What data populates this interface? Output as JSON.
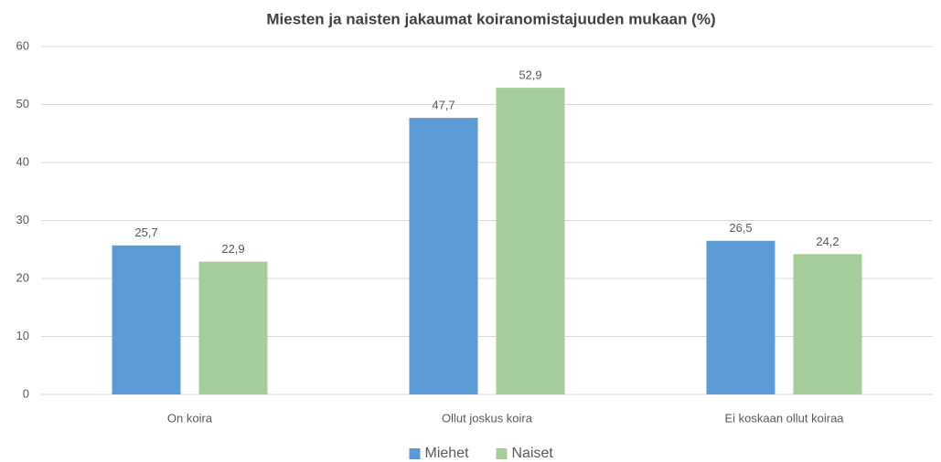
{
  "chart_data": {
    "type": "bar",
    "title": "Miesten ja naisten jakaumat koiranomistajuuden mukaan (%)",
    "categories": [
      "On koira",
      "Ollut joskus koira",
      "Ei koskaan ollut koiraa"
    ],
    "series": [
      {
        "name": "Miehet",
        "color": "#5b9bd5",
        "values": [
          25.7,
          47.7,
          26.5
        ],
        "value_labels": [
          "25,7",
          "47,7",
          "26,5"
        ]
      },
      {
        "name": "Naiset",
        "color": "#a5cd99",
        "values": [
          22.9,
          52.9,
          24.2
        ],
        "value_labels": [
          "22,9",
          "52,9",
          "24,2"
        ]
      }
    ],
    "ylim": [
      0,
      60
    ],
    "yticks": [
      0,
      10,
      20,
      30,
      40,
      50,
      60
    ],
    "grid": true,
    "legend": "bottom"
  }
}
